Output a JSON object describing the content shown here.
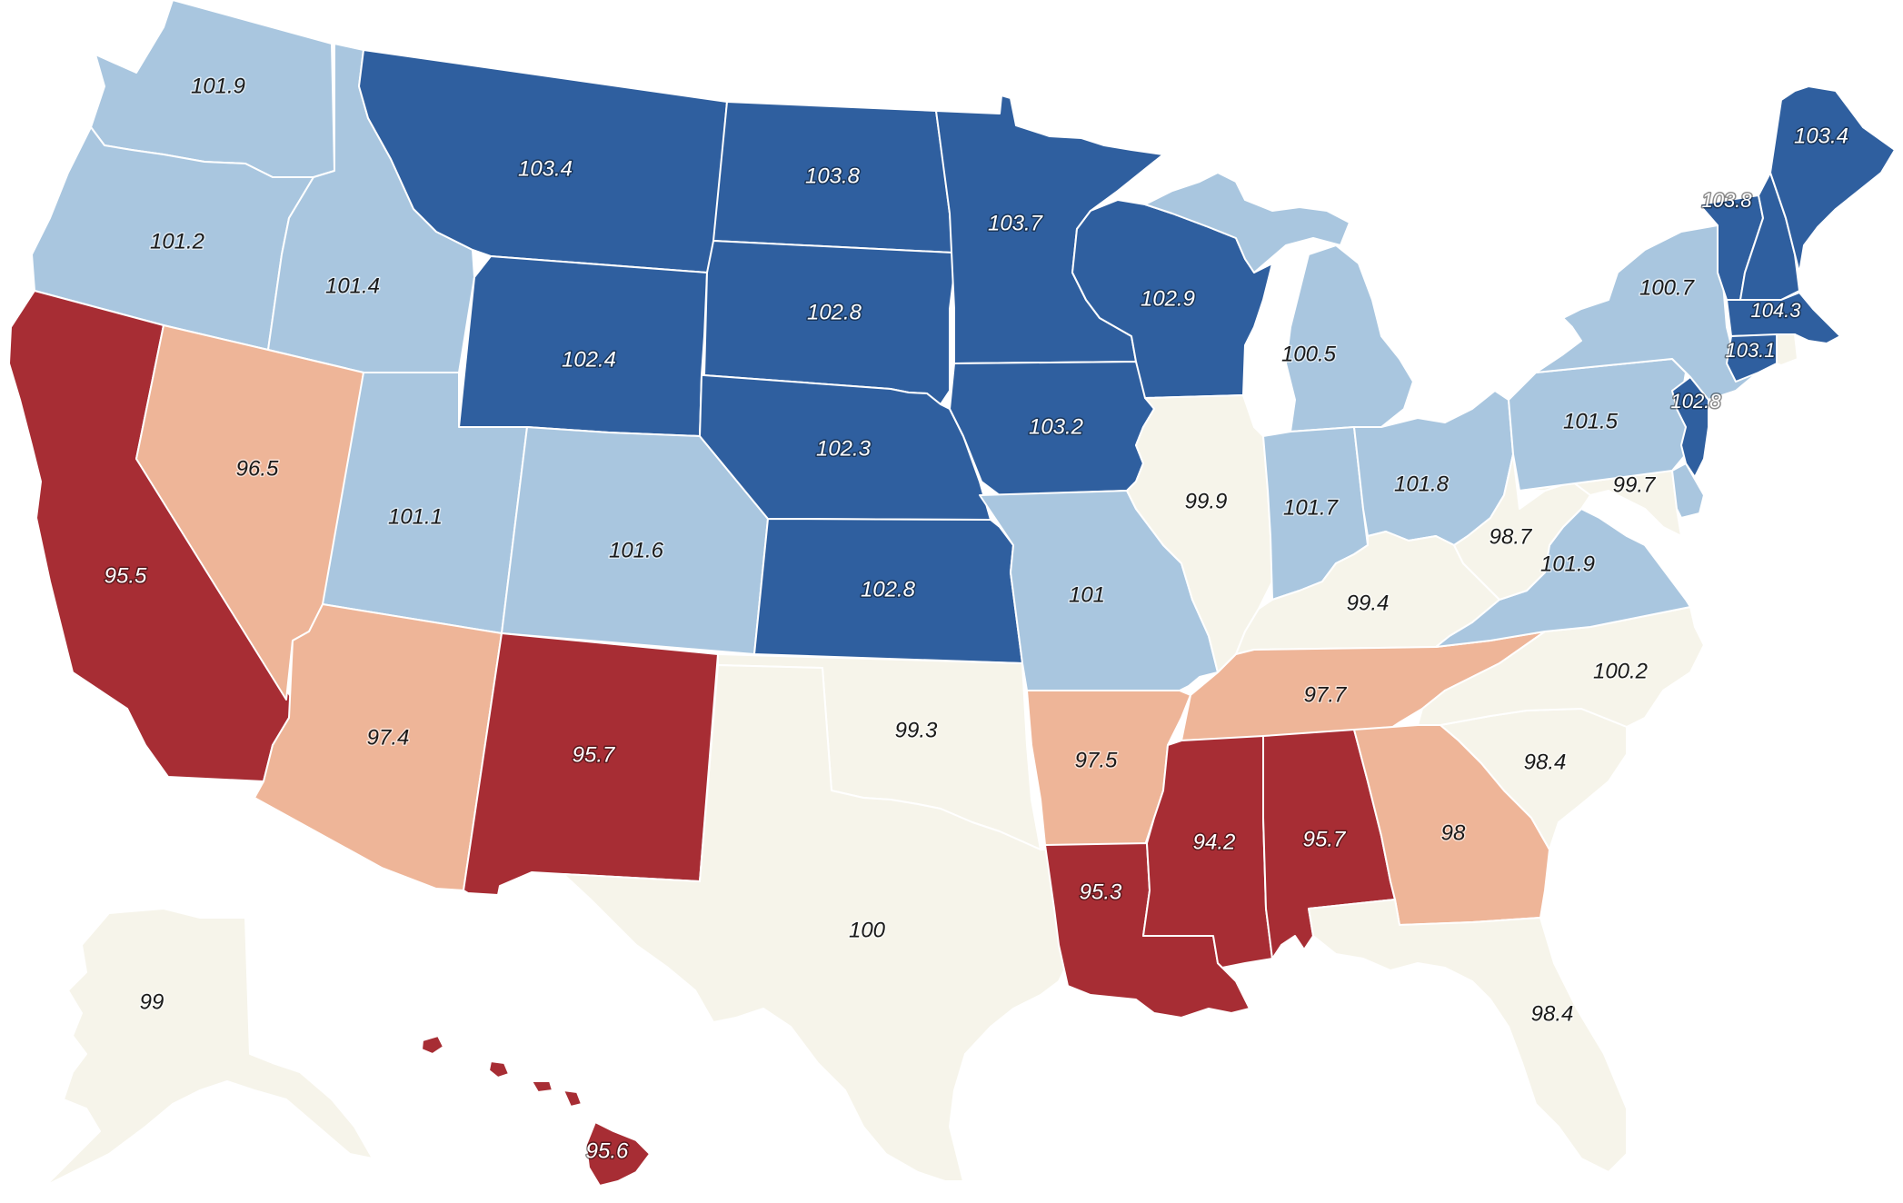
{
  "colors": {
    "dark_blue": "#2f5f9f",
    "light_blue": "#a9c6df",
    "cream": "#f6f4ea",
    "salmon": "#eeb598",
    "dark_red": "#a72d34"
  },
  "states": [
    {
      "id": "WA",
      "value": "101.9",
      "cls": "light_blue"
    },
    {
      "id": "OR",
      "value": "101.2",
      "cls": "light_blue"
    },
    {
      "id": "CA",
      "value": "95.5",
      "cls": "dark_red"
    },
    {
      "id": "ID",
      "value": "101.4",
      "cls": "light_blue"
    },
    {
      "id": "NV",
      "value": "96.5",
      "cls": "salmon"
    },
    {
      "id": "MT",
      "value": "103.4",
      "cls": "dark_blue"
    },
    {
      "id": "WY",
      "value": "102.4",
      "cls": "dark_blue"
    },
    {
      "id": "UT",
      "value": "101.1",
      "cls": "light_blue"
    },
    {
      "id": "AZ",
      "value": "97.4",
      "cls": "salmon"
    },
    {
      "id": "CO",
      "value": "101.6",
      "cls": "light_blue"
    },
    {
      "id": "NM",
      "value": "95.7",
      "cls": "dark_red"
    },
    {
      "id": "ND",
      "value": "103.8",
      "cls": "dark_blue"
    },
    {
      "id": "SD",
      "value": "102.8",
      "cls": "dark_blue"
    },
    {
      "id": "NE",
      "value": "102.3",
      "cls": "dark_blue"
    },
    {
      "id": "KS",
      "value": "102.8",
      "cls": "dark_blue"
    },
    {
      "id": "OK",
      "value": "99.3",
      "cls": "cream"
    },
    {
      "id": "TX",
      "value": "100",
      "cls": "cream"
    },
    {
      "id": "MN",
      "value": "103.7",
      "cls": "dark_blue"
    },
    {
      "id": "IA",
      "value": "103.2",
      "cls": "dark_blue"
    },
    {
      "id": "MO",
      "value": "101",
      "cls": "light_blue"
    },
    {
      "id": "AR",
      "value": "97.5",
      "cls": "salmon"
    },
    {
      "id": "LA",
      "value": "95.3",
      "cls": "dark_red"
    },
    {
      "id": "WI",
      "value": "102.9",
      "cls": "dark_blue"
    },
    {
      "id": "IL",
      "value": "99.9",
      "cls": "cream"
    },
    {
      "id": "MI",
      "value": "100.5",
      "cls": "light_blue"
    },
    {
      "id": "IN",
      "value": "101.7",
      "cls": "light_blue"
    },
    {
      "id": "OH",
      "value": "101.8",
      "cls": "light_blue"
    },
    {
      "id": "KY",
      "value": "99.4",
      "cls": "cream"
    },
    {
      "id": "TN",
      "value": "97.7",
      "cls": "salmon"
    },
    {
      "id": "MS",
      "value": "94.2",
      "cls": "dark_red"
    },
    {
      "id": "AL",
      "value": "95.7",
      "cls": "dark_red"
    },
    {
      "id": "GA",
      "value": "98",
      "cls": "salmon"
    },
    {
      "id": "FL",
      "value": "98.4",
      "cls": "cream"
    },
    {
      "id": "SC",
      "value": "98.4",
      "cls": "cream"
    },
    {
      "id": "NC",
      "value": "100.2",
      "cls": "cream"
    },
    {
      "id": "VA",
      "value": "101.9",
      "cls": "light_blue"
    },
    {
      "id": "WV",
      "value": "98.7",
      "cls": "cream"
    },
    {
      "id": "MD",
      "value": "99.7",
      "cls": "cream"
    },
    {
      "id": "DE",
      "value": "",
      "cls": "light_blue"
    },
    {
      "id": "PA",
      "value": "101.5",
      "cls": "light_blue"
    },
    {
      "id": "NJ",
      "value": "102.8",
      "cls": "dark_blue"
    },
    {
      "id": "NY",
      "value": "100.7",
      "cls": "light_blue"
    },
    {
      "id": "CT",
      "value": "103.1",
      "cls": "dark_blue"
    },
    {
      "id": "RI",
      "value": "",
      "cls": "cream"
    },
    {
      "id": "MA",
      "value": "104.3",
      "cls": "dark_blue"
    },
    {
      "id": "VT",
      "value": "103.8",
      "cls": "dark_blue"
    },
    {
      "id": "NH",
      "value": "",
      "cls": "dark_blue"
    },
    {
      "id": "ME",
      "value": "103.4",
      "cls": "dark_blue"
    },
    {
      "id": "AK",
      "value": "99",
      "cls": "cream"
    },
    {
      "id": "HI",
      "value": "95.6",
      "cls": "dark_red"
    }
  ]
}
